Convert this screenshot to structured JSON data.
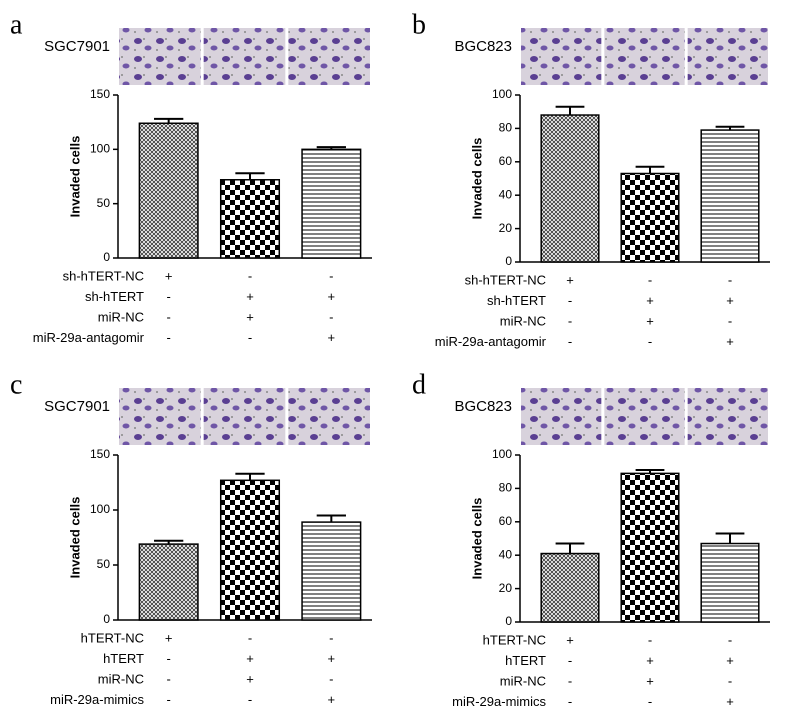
{
  "chart_data": [
    {
      "type": "bar",
      "panel": "a",
      "cell_line": "SGC7901",
      "ylabel": "Invaded cells",
      "values": [
        124,
        72,
        100
      ],
      "errors": [
        4,
        6,
        2
      ],
      "ylim": [
        0,
        150
      ],
      "yticks": [
        0,
        50,
        100,
        150
      ],
      "patterns": [
        "crosshatch",
        "checker",
        "hlines"
      ],
      "conditions": [
        {
          "name": "sh-hTERT-NC",
          "signs": [
            "+",
            "-",
            "-"
          ]
        },
        {
          "name": "sh-hTERT",
          "signs": [
            "-",
            "+",
            "+"
          ]
        },
        {
          "name": "miR-NC",
          "signs": [
            "-",
            "+",
            "-"
          ]
        },
        {
          "name": "miR-29a-antagomir",
          "signs": [
            "-",
            "-",
            "+"
          ]
        }
      ]
    },
    {
      "type": "bar",
      "panel": "b",
      "cell_line": "BGC823",
      "ylabel": "Invaded cells",
      "values": [
        88,
        53,
        79
      ],
      "errors": [
        5,
        4,
        2
      ],
      "ylim": [
        0,
        100
      ],
      "yticks": [
        0,
        20,
        40,
        60,
        80,
        100
      ],
      "patterns": [
        "crosshatch",
        "checker",
        "hlines"
      ],
      "conditions": [
        {
          "name": "sh-hTERT-NC",
          "signs": [
            "+",
            "-",
            "-"
          ]
        },
        {
          "name": "sh-hTERT",
          "signs": [
            "-",
            "+",
            "+"
          ]
        },
        {
          "name": "miR-NC",
          "signs": [
            "-",
            "+",
            "-"
          ]
        },
        {
          "name": "miR-29a-antagomir",
          "signs": [
            "-",
            "-",
            "+"
          ]
        }
      ]
    },
    {
      "type": "bar",
      "panel": "c",
      "cell_line": "SGC7901",
      "ylabel": "Invaded cells",
      "values": [
        69,
        127,
        89
      ],
      "errors": [
        3,
        6,
        6
      ],
      "ylim": [
        0,
        150
      ],
      "yticks": [
        0,
        50,
        100,
        150
      ],
      "patterns": [
        "crosshatch",
        "checker",
        "hlines"
      ],
      "conditions": [
        {
          "name": "hTERT-NC",
          "signs": [
            "+",
            "-",
            "-"
          ]
        },
        {
          "name": "hTERT",
          "signs": [
            "-",
            "+",
            "+"
          ]
        },
        {
          "name": "miR-NC",
          "signs": [
            "-",
            "+",
            "-"
          ]
        },
        {
          "name": "miR-29a-mimics",
          "signs": [
            "-",
            "-",
            "+"
          ]
        }
      ]
    },
    {
      "type": "bar",
      "panel": "d",
      "cell_line": "BGC823",
      "ylabel": "Invaded cells",
      "values": [
        41,
        89,
        47
      ],
      "errors": [
        6,
        2,
        6
      ],
      "ylim": [
        0,
        100
      ],
      "yticks": [
        0,
        20,
        40,
        60,
        80,
        100
      ],
      "patterns": [
        "crosshatch",
        "checker",
        "hlines"
      ],
      "conditions": [
        {
          "name": "hTERT-NC",
          "signs": [
            "+",
            "-",
            "-"
          ]
        },
        {
          "name": "hTERT",
          "signs": [
            "-",
            "+",
            "+"
          ]
        },
        {
          "name": "miR-NC",
          "signs": [
            "-",
            "+",
            "-"
          ]
        },
        {
          "name": "miR-29a-mimics",
          "signs": [
            "-",
            "-",
            "+"
          ]
        }
      ]
    }
  ]
}
